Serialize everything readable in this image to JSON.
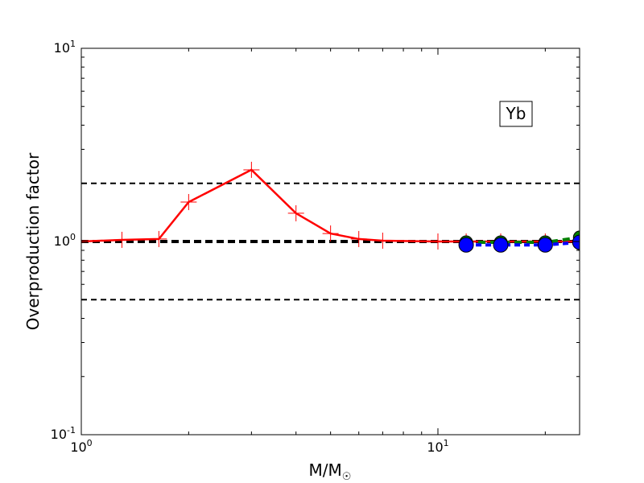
{
  "chart_data": {
    "type": "line",
    "xscale": "log",
    "yscale": "log",
    "xlim": [
      1,
      25
    ],
    "ylim": [
      0.1,
      10
    ],
    "xlabel": {
      "base": "M/M",
      "subscript": "☉"
    },
    "ylabel": "Overproduction factor",
    "x_ticks": [
      {
        "value": 1,
        "base": "10",
        "exp": "0"
      },
      {
        "value": 10,
        "base": "10",
        "exp": "1"
      }
    ],
    "y_ticks": [
      {
        "value": 0.1,
        "base": "10",
        "exp": "-1"
      },
      {
        "value": 1,
        "base": "10",
        "exp": "0"
      },
      {
        "value": 10,
        "base": "10",
        "exp": "1"
      }
    ],
    "annotation": "Yb",
    "grid": false,
    "reference_lines": [
      {
        "y": 2.0,
        "style": "dashed",
        "weight": "thin"
      },
      {
        "y": 1.0,
        "style": "dashed",
        "weight": "thick"
      },
      {
        "y": 0.5,
        "style": "dashed",
        "weight": "thin"
      }
    ],
    "series": [
      {
        "color": "#ff0000",
        "line": "solid",
        "marker": "plus",
        "x": [
          1.0,
          1.3,
          1.65,
          2.0,
          3.0,
          4.0,
          5.0,
          6.0,
          7.0,
          10.0,
          12.0,
          15.0,
          20.0,
          25.0
        ],
        "y": [
          1.0,
          1.02,
          1.03,
          1.6,
          2.35,
          1.4,
          1.1,
          1.03,
          1.01,
          1.0,
          1.0,
          1.0,
          1.0,
          1.0
        ]
      },
      {
        "color": "#008000",
        "line": "dashed",
        "marker": "circle",
        "x": [
          12.0,
          15.0,
          20.0,
          25.0
        ],
        "y": [
          0.99,
          0.99,
          0.99,
          1.05
        ]
      },
      {
        "color": "#0000ff",
        "line": "dotted",
        "marker": "circle",
        "x": [
          12.0,
          15.0,
          20.0,
          25.0
        ],
        "y": [
          0.96,
          0.96,
          0.96,
          0.99
        ]
      }
    ]
  }
}
